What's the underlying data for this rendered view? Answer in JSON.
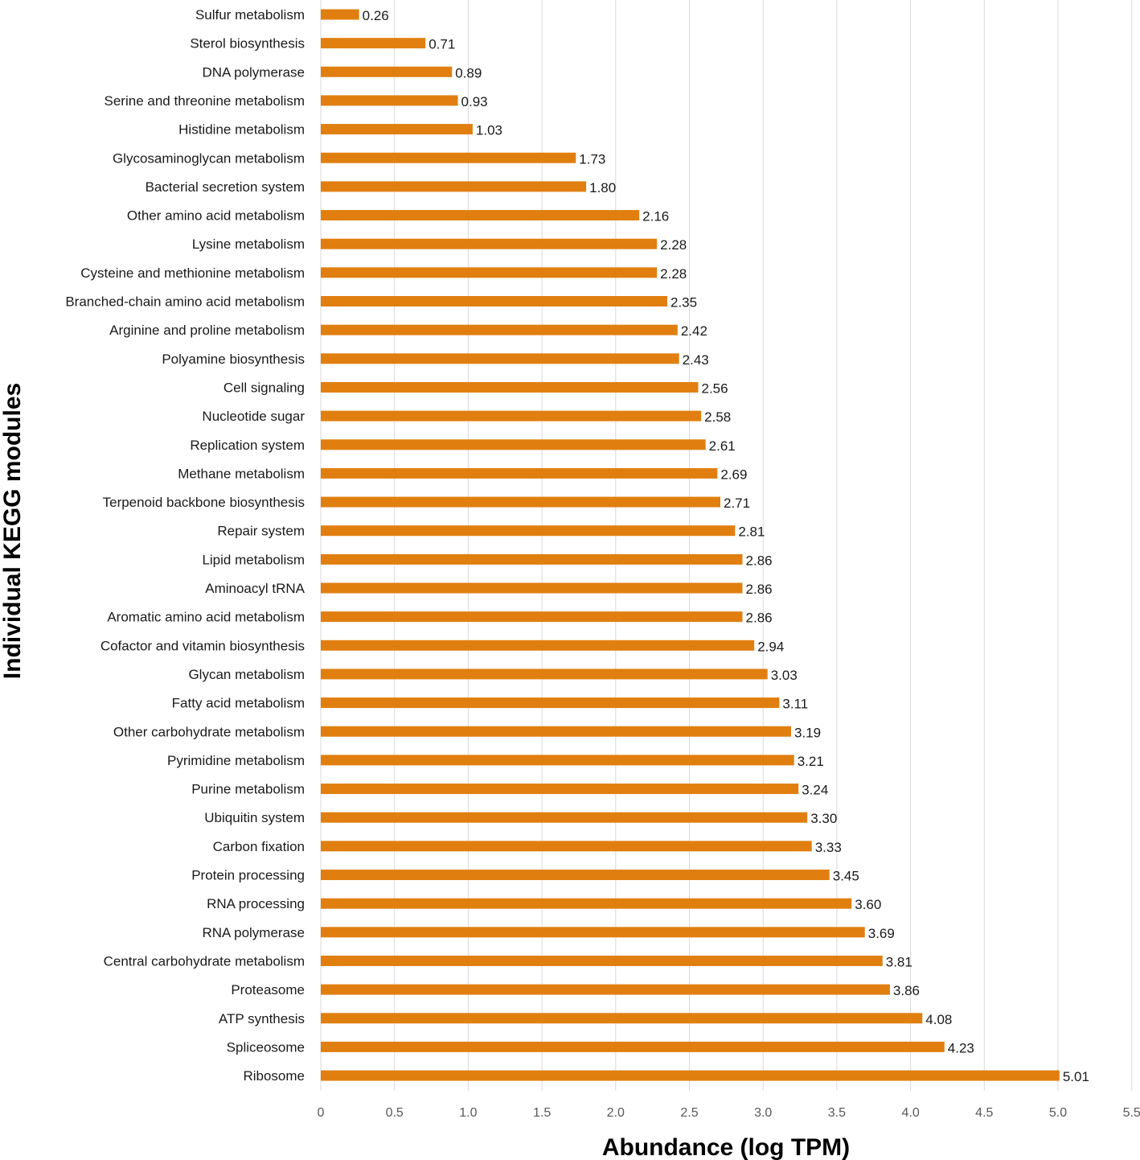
{
  "chart_data": {
    "type": "bar",
    "orientation": "horizontal",
    "xlabel": "Abundance (log TPM)",
    "ylabel": "Individual KEGG modules",
    "xlim": [
      0,
      5.5
    ],
    "xticks": [
      "0",
      "0.5",
      "1.0",
      "1.5",
      "2.0",
      "2.5",
      "3.0",
      "3.5",
      "4.0",
      "4.5",
      "5.0",
      "5.5"
    ],
    "grid": "vertical",
    "bar_color": "#E07F10",
    "categories": [
      "Sulfur metabolism",
      "Sterol biosynthesis",
      "DNA polymerase",
      "Serine and threonine metabolism",
      "Histidine metabolism",
      "Glycosaminoglycan metabolism",
      "Bacterial secretion system",
      "Other amino acid metabolism",
      "Lysine metabolism",
      "Cysteine and methionine metabolism",
      "Branched-chain amino acid metabolism",
      "Arginine and proline metabolism",
      "Polyamine biosynthesis",
      "Cell signaling",
      "Nucleotide sugar",
      "Replication system",
      "Methane metabolism",
      "Terpenoid backbone biosynthesis",
      "Repair system",
      "Lipid metabolism",
      "Aminoacyl tRNA",
      "Aromatic amino acid metabolism",
      "Cofactor and vitamin biosynthesis",
      "Glycan metabolism",
      "Fatty acid metabolism",
      "Other carbohydrate metabolism",
      "Pyrimidine metabolism",
      "Purine metabolism",
      "Ubiquitin system",
      "Carbon fixation",
      "Protein processing",
      "RNA processing",
      "RNA polymerase",
      "Central carbohydrate metabolism",
      "Proteasome",
      "ATP synthesis",
      "Spliceosome",
      "Ribosome"
    ],
    "values": [
      0.26,
      0.71,
      0.89,
      0.93,
      1.03,
      1.73,
      1.8,
      2.16,
      2.28,
      2.28,
      2.35,
      2.42,
      2.43,
      2.56,
      2.58,
      2.61,
      2.69,
      2.71,
      2.81,
      2.86,
      2.86,
      2.86,
      2.94,
      3.03,
      3.11,
      3.19,
      3.21,
      3.24,
      3.3,
      3.33,
      3.45,
      3.6,
      3.69,
      3.81,
      3.86,
      4.08,
      4.23,
      5.01
    ],
    "value_labels": [
      "0.26",
      "0.71",
      "0.89",
      "0.93",
      "1.03",
      "1.73",
      "1.80",
      "2.16",
      "2.28",
      "2.28",
      "2.35",
      "2.42",
      "2.43",
      "2.56",
      "2.58",
      "2.61",
      "2.69",
      "2.71",
      "2.81",
      "2.86",
      "2.86",
      "2.86",
      "2.94",
      "3.03",
      "3.11",
      "3.19",
      "3.21",
      "3.24",
      "3.30",
      "3.33",
      "3.45",
      "3.60",
      "3.69",
      "3.81",
      "3.86",
      "4.08",
      "4.23",
      "5.01"
    ]
  }
}
